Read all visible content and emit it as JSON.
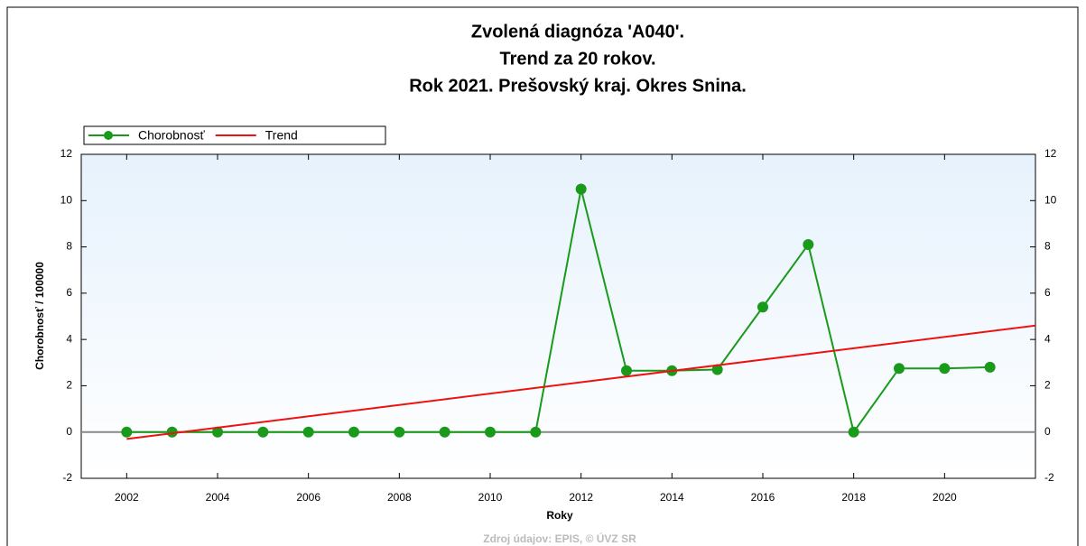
{
  "chart_data": {
    "type": "line",
    "title": [
      "Zvolená diagnóza 'A040'.",
      "Trend za 20 rokov.",
      "Rok 2021. Prešovský kraj. Okres Snina."
    ],
    "x_label": "Roky",
    "y_label": "Chorobnosť / 100000",
    "source": "Zdroj údajov: EPIS, © ÚVZ SR",
    "x": [
      2002,
      2003,
      2004,
      2005,
      2006,
      2007,
      2008,
      2009,
      2010,
      2011,
      2012,
      2013,
      2014,
      2015,
      2016,
      2017,
      2018,
      2019,
      2020,
      2021
    ],
    "series": [
      {
        "name": "Chorobnosť",
        "color": "#1a9a1a",
        "markers": true,
        "values": [
          0,
          0,
          0,
          0,
          0,
          0,
          0,
          0,
          0,
          0,
          10.5,
          2.65,
          2.65,
          2.7,
          5.4,
          8.1,
          0,
          2.75,
          2.75,
          2.8
        ]
      },
      {
        "name": "Trend",
        "color": "#ee1111",
        "markers": false,
        "x": [
          2002,
          2022
        ],
        "values": [
          -0.3,
          4.6
        ]
      }
    ],
    "xlim": [
      2001,
      2022
    ],
    "xticks": [
      2002,
      2004,
      2006,
      2008,
      2010,
      2012,
      2014,
      2016,
      2018,
      2020
    ],
    "ylim": [
      -2,
      12
    ],
    "yticks": [
      -2,
      0,
      2,
      4,
      6,
      8,
      10,
      12
    ],
    "y2lim": [
      -2,
      12
    ],
    "y2ticks": [
      -2,
      0,
      2,
      4,
      6,
      8,
      10,
      12
    ],
    "legend": "top-left"
  }
}
